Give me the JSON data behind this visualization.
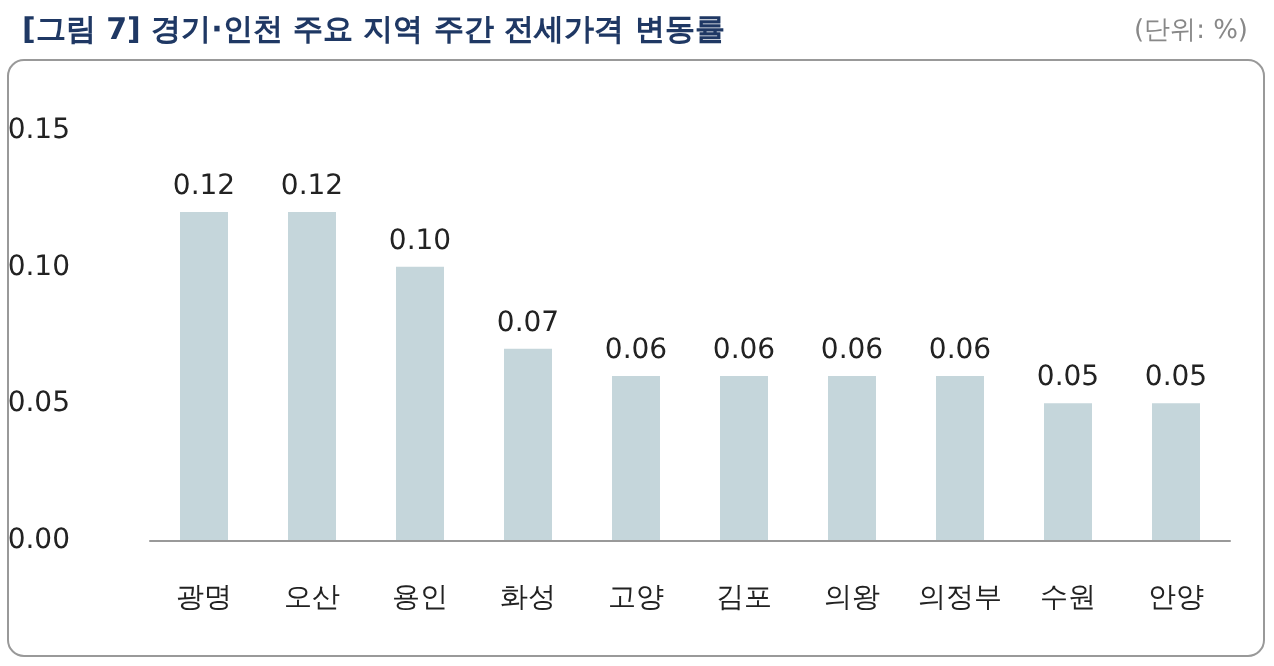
{
  "chart_data": {
    "type": "bar",
    "title": "[그림 7] 경기·인천 주요 지역 주간 전세가격 변동률",
    "subtitle": "(단위: %)",
    "categories": [
      "광명",
      "오산",
      "용인",
      "화성",
      "고양",
      "김포",
      "의왕",
      "의정부",
      "수원",
      "안양"
    ],
    "values": [
      0.12,
      0.12,
      0.1,
      0.07,
      0.06,
      0.06,
      0.06,
      0.06,
      0.05,
      0.05
    ],
    "value_labels": [
      "0.12",
      "0.12",
      "0.10",
      "0.07",
      "0.06",
      "0.06",
      "0.06",
      "0.06",
      "0.05",
      "0.05"
    ],
    "color": "#c5d6db",
    "ylim": [
      0,
      0.15
    ],
    "yticks": [
      {
        "value": 0,
        "label": "0.00"
      },
      {
        "value": 0.05,
        "label": "0.05"
      },
      {
        "value": 0.1,
        "label": "0.10"
      },
      {
        "value": 0.15,
        "label": "0.15"
      }
    ],
    "grid": false
  }
}
